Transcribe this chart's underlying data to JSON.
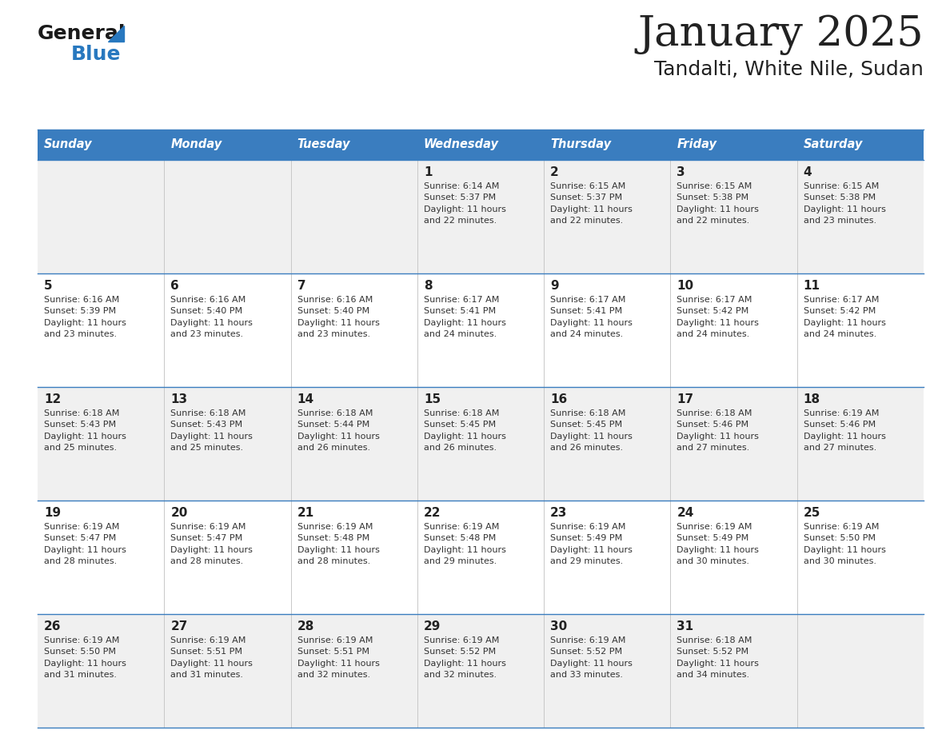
{
  "title": "January 2025",
  "subtitle": "Tandalti, White Nile, Sudan",
  "header_bg": "#3a7dbf",
  "header_text": "#ffffff",
  "weekdays": [
    "Sunday",
    "Monday",
    "Tuesday",
    "Wednesday",
    "Thursday",
    "Friday",
    "Saturday"
  ],
  "row_bg_odd": "#f0f0f0",
  "row_bg_even": "#ffffff",
  "separator_color": "#3a7dbf",
  "day_number_color": "#222222",
  "cell_text_color": "#333333",
  "title_color": "#222222",
  "subtitle_color": "#333333",
  "logo_general_color": "#1a1a1a",
  "logo_blue_color": "#2878bf",
  "calendar": [
    [
      {
        "day": null,
        "text": ""
      },
      {
        "day": null,
        "text": ""
      },
      {
        "day": null,
        "text": ""
      },
      {
        "day": 1,
        "text": "Sunrise: 6:14 AM\nSunset: 5:37 PM\nDaylight: 11 hours\nand 22 minutes."
      },
      {
        "day": 2,
        "text": "Sunrise: 6:15 AM\nSunset: 5:37 PM\nDaylight: 11 hours\nand 22 minutes."
      },
      {
        "day": 3,
        "text": "Sunrise: 6:15 AM\nSunset: 5:38 PM\nDaylight: 11 hours\nand 22 minutes."
      },
      {
        "day": 4,
        "text": "Sunrise: 6:15 AM\nSunset: 5:38 PM\nDaylight: 11 hours\nand 23 minutes."
      }
    ],
    [
      {
        "day": 5,
        "text": "Sunrise: 6:16 AM\nSunset: 5:39 PM\nDaylight: 11 hours\nand 23 minutes."
      },
      {
        "day": 6,
        "text": "Sunrise: 6:16 AM\nSunset: 5:40 PM\nDaylight: 11 hours\nand 23 minutes."
      },
      {
        "day": 7,
        "text": "Sunrise: 6:16 AM\nSunset: 5:40 PM\nDaylight: 11 hours\nand 23 minutes."
      },
      {
        "day": 8,
        "text": "Sunrise: 6:17 AM\nSunset: 5:41 PM\nDaylight: 11 hours\nand 24 minutes."
      },
      {
        "day": 9,
        "text": "Sunrise: 6:17 AM\nSunset: 5:41 PM\nDaylight: 11 hours\nand 24 minutes."
      },
      {
        "day": 10,
        "text": "Sunrise: 6:17 AM\nSunset: 5:42 PM\nDaylight: 11 hours\nand 24 minutes."
      },
      {
        "day": 11,
        "text": "Sunrise: 6:17 AM\nSunset: 5:42 PM\nDaylight: 11 hours\nand 24 minutes."
      }
    ],
    [
      {
        "day": 12,
        "text": "Sunrise: 6:18 AM\nSunset: 5:43 PM\nDaylight: 11 hours\nand 25 minutes."
      },
      {
        "day": 13,
        "text": "Sunrise: 6:18 AM\nSunset: 5:43 PM\nDaylight: 11 hours\nand 25 minutes."
      },
      {
        "day": 14,
        "text": "Sunrise: 6:18 AM\nSunset: 5:44 PM\nDaylight: 11 hours\nand 26 minutes."
      },
      {
        "day": 15,
        "text": "Sunrise: 6:18 AM\nSunset: 5:45 PM\nDaylight: 11 hours\nand 26 minutes."
      },
      {
        "day": 16,
        "text": "Sunrise: 6:18 AM\nSunset: 5:45 PM\nDaylight: 11 hours\nand 26 minutes."
      },
      {
        "day": 17,
        "text": "Sunrise: 6:18 AM\nSunset: 5:46 PM\nDaylight: 11 hours\nand 27 minutes."
      },
      {
        "day": 18,
        "text": "Sunrise: 6:19 AM\nSunset: 5:46 PM\nDaylight: 11 hours\nand 27 minutes."
      }
    ],
    [
      {
        "day": 19,
        "text": "Sunrise: 6:19 AM\nSunset: 5:47 PM\nDaylight: 11 hours\nand 28 minutes."
      },
      {
        "day": 20,
        "text": "Sunrise: 6:19 AM\nSunset: 5:47 PM\nDaylight: 11 hours\nand 28 minutes."
      },
      {
        "day": 21,
        "text": "Sunrise: 6:19 AM\nSunset: 5:48 PM\nDaylight: 11 hours\nand 28 minutes."
      },
      {
        "day": 22,
        "text": "Sunrise: 6:19 AM\nSunset: 5:48 PM\nDaylight: 11 hours\nand 29 minutes."
      },
      {
        "day": 23,
        "text": "Sunrise: 6:19 AM\nSunset: 5:49 PM\nDaylight: 11 hours\nand 29 minutes."
      },
      {
        "day": 24,
        "text": "Sunrise: 6:19 AM\nSunset: 5:49 PM\nDaylight: 11 hours\nand 30 minutes."
      },
      {
        "day": 25,
        "text": "Sunrise: 6:19 AM\nSunset: 5:50 PM\nDaylight: 11 hours\nand 30 minutes."
      }
    ],
    [
      {
        "day": 26,
        "text": "Sunrise: 6:19 AM\nSunset: 5:50 PM\nDaylight: 11 hours\nand 31 minutes."
      },
      {
        "day": 27,
        "text": "Sunrise: 6:19 AM\nSunset: 5:51 PM\nDaylight: 11 hours\nand 31 minutes."
      },
      {
        "day": 28,
        "text": "Sunrise: 6:19 AM\nSunset: 5:51 PM\nDaylight: 11 hours\nand 32 minutes."
      },
      {
        "day": 29,
        "text": "Sunrise: 6:19 AM\nSunset: 5:52 PM\nDaylight: 11 hours\nand 32 minutes."
      },
      {
        "day": 30,
        "text": "Sunrise: 6:19 AM\nSunset: 5:52 PM\nDaylight: 11 hours\nand 33 minutes."
      },
      {
        "day": 31,
        "text": "Sunrise: 6:18 AM\nSunset: 5:52 PM\nDaylight: 11 hours\nand 34 minutes."
      },
      {
        "day": null,
        "text": ""
      }
    ]
  ]
}
